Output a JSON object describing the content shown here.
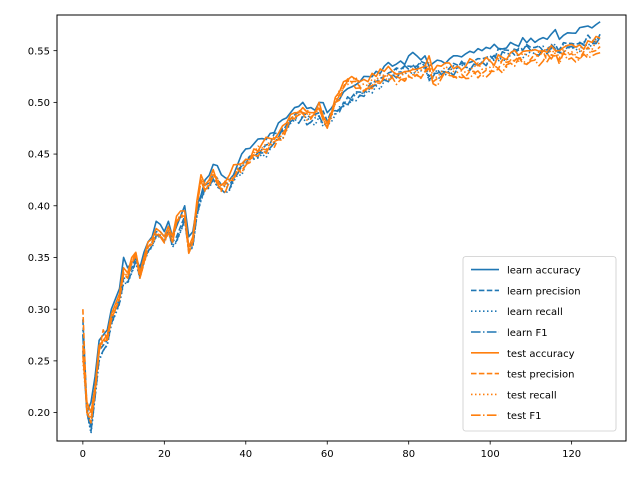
{
  "chart_data": {
    "type": "line",
    "title": "",
    "xlabel": "",
    "ylabel": "",
    "xlim": [
      -6.35,
      133.35
    ],
    "ylim": [
      0.1725,
      0.5845
    ],
    "x_ticks": [
      0,
      20,
      40,
      60,
      80,
      100,
      120
    ],
    "x_tick_labels": [
      "0",
      "20",
      "40",
      "60",
      "80",
      "100",
      "120"
    ],
    "y_ticks": [
      0.2,
      0.25,
      0.3,
      0.35,
      0.4,
      0.45,
      0.5,
      0.55
    ],
    "y_tick_labels": [
      "0.20",
      "0.25",
      "0.30",
      "0.35",
      "0.40",
      "0.45",
      "0.50",
      "0.55"
    ],
    "grid": false,
    "legend_position": "lower right",
    "keypoints": {
      "x": [
        0,
        1,
        2,
        3,
        4,
        5,
        6,
        7,
        8,
        9,
        10,
        11,
        12,
        13,
        14,
        15,
        16,
        17,
        18,
        19,
        20,
        21,
        22,
        23,
        24,
        25,
        26,
        27,
        28,
        29,
        30,
        32,
        34,
        36,
        38,
        40,
        42,
        44,
        46,
        48,
        50,
        52,
        54,
        56,
        58,
        60,
        62,
        64,
        66,
        68,
        70,
        72,
        74,
        76,
        78,
        80,
        82,
        84,
        85,
        86,
        88,
        90,
        92,
        94,
        96,
        98,
        100,
        105,
        110,
        115,
        120,
        125,
        127
      ],
      "learn_accuracy": [
        0.26,
        0.2,
        0.21,
        0.235,
        0.27,
        0.275,
        0.28,
        0.3,
        0.31,
        0.32,
        0.35,
        0.34,
        0.345,
        0.35,
        0.34,
        0.355,
        0.365,
        0.37,
        0.385,
        0.382,
        0.375,
        0.385,
        0.37,
        0.38,
        0.39,
        0.4,
        0.37,
        0.375,
        0.4,
        0.41,
        0.425,
        0.44,
        0.43,
        0.425,
        0.44,
        0.455,
        0.46,
        0.465,
        0.47,
        0.48,
        0.485,
        0.495,
        0.5,
        0.495,
        0.5,
        0.49,
        0.5,
        0.51,
        0.515,
        0.52,
        0.525,
        0.53,
        0.535,
        0.535,
        0.54,
        0.545,
        0.545,
        0.545,
        0.535,
        0.538,
        0.54,
        0.542,
        0.545,
        0.547,
        0.548,
        0.55,
        0.552,
        0.558,
        0.562,
        0.566,
        0.567,
        0.572,
        0.578
      ],
      "learn_precision": [
        0.29,
        0.205,
        0.185,
        0.22,
        0.26,
        0.265,
        0.27,
        0.29,
        0.3,
        0.31,
        0.33,
        0.33,
        0.34,
        0.35,
        0.335,
        0.35,
        0.36,
        0.365,
        0.375,
        0.375,
        0.37,
        0.38,
        0.365,
        0.37,
        0.38,
        0.39,
        0.36,
        0.365,
        0.395,
        0.41,
        0.42,
        0.43,
        0.42,
        0.42,
        0.435,
        0.445,
        0.45,
        0.455,
        0.46,
        0.47,
        0.478,
        0.488,
        0.49,
        0.485,
        0.49,
        0.482,
        0.492,
        0.5,
        0.505,
        0.51,
        0.515,
        0.52,
        0.525,
        0.53,
        0.532,
        0.535,
        0.535,
        0.538,
        0.525,
        0.528,
        0.53,
        0.533,
        0.536,
        0.538,
        0.54,
        0.542,
        0.545,
        0.55,
        0.553,
        0.556,
        0.557,
        0.56,
        0.566
      ],
      "learn_recall": [
        0.28,
        0.2,
        0.18,
        0.215,
        0.25,
        0.26,
        0.265,
        0.285,
        0.295,
        0.305,
        0.325,
        0.325,
        0.335,
        0.345,
        0.33,
        0.345,
        0.355,
        0.36,
        0.37,
        0.37,
        0.365,
        0.375,
        0.36,
        0.365,
        0.375,
        0.385,
        0.355,
        0.36,
        0.39,
        0.405,
        0.415,
        0.425,
        0.415,
        0.415,
        0.43,
        0.44,
        0.445,
        0.45,
        0.455,
        0.465,
        0.473,
        0.483,
        0.485,
        0.48,
        0.486,
        0.478,
        0.488,
        0.496,
        0.501,
        0.506,
        0.511,
        0.516,
        0.521,
        0.526,
        0.528,
        0.531,
        0.531,
        0.534,
        0.521,
        0.524,
        0.526,
        0.529,
        0.532,
        0.534,
        0.536,
        0.538,
        0.541,
        0.546,
        0.549,
        0.552,
        0.553,
        0.556,
        0.562
      ],
      "learn_f1": [
        0.275,
        0.2,
        0.182,
        0.215,
        0.252,
        0.26,
        0.266,
        0.286,
        0.296,
        0.306,
        0.327,
        0.326,
        0.336,
        0.346,
        0.331,
        0.346,
        0.356,
        0.361,
        0.371,
        0.371,
        0.366,
        0.376,
        0.361,
        0.366,
        0.376,
        0.386,
        0.356,
        0.361,
        0.391,
        0.406,
        0.416,
        0.426,
        0.416,
        0.416,
        0.431,
        0.441,
        0.446,
        0.451,
        0.456,
        0.466,
        0.474,
        0.484,
        0.486,
        0.481,
        0.487,
        0.479,
        0.489,
        0.497,
        0.502,
        0.507,
        0.512,
        0.517,
        0.522,
        0.527,
        0.529,
        0.532,
        0.532,
        0.535,
        0.522,
        0.525,
        0.527,
        0.53,
        0.533,
        0.535,
        0.537,
        0.539,
        0.542,
        0.547,
        0.55,
        0.553,
        0.554,
        0.557,
        0.563
      ],
      "test_accuracy": [
        0.255,
        0.21,
        0.2,
        0.225,
        0.265,
        0.27,
        0.275,
        0.295,
        0.305,
        0.315,
        0.34,
        0.335,
        0.35,
        0.355,
        0.335,
        0.35,
        0.365,
        0.368,
        0.378,
        0.375,
        0.37,
        0.38,
        0.37,
        0.39,
        0.395,
        0.395,
        0.36,
        0.37,
        0.405,
        0.43,
        0.42,
        0.435,
        0.42,
        0.43,
        0.44,
        0.445,
        0.455,
        0.46,
        0.465,
        0.47,
        0.48,
        0.49,
        0.495,
        0.49,
        0.5,
        0.48,
        0.505,
        0.52,
        0.525,
        0.52,
        0.52,
        0.525,
        0.53,
        0.53,
        0.528,
        0.53,
        0.532,
        0.535,
        0.545,
        0.53,
        0.535,
        0.538,
        0.535,
        0.535,
        0.54,
        0.538,
        0.54,
        0.548,
        0.55,
        0.555,
        0.556,
        0.558,
        0.562
      ],
      "test_precision": [
        0.3,
        0.2,
        0.19,
        0.22,
        0.26,
        0.28,
        0.27,
        0.29,
        0.3,
        0.31,
        0.335,
        0.33,
        0.345,
        0.355,
        0.33,
        0.345,
        0.36,
        0.365,
        0.372,
        0.372,
        0.365,
        0.375,
        0.365,
        0.385,
        0.39,
        0.39,
        0.355,
        0.365,
        0.4,
        0.425,
        0.415,
        0.43,
        0.415,
        0.425,
        0.435,
        0.44,
        0.45,
        0.455,
        0.46,
        0.465,
        0.475,
        0.485,
        0.49,
        0.485,
        0.495,
        0.476,
        0.5,
        0.515,
        0.52,
        0.515,
        0.515,
        0.52,
        0.525,
        0.525,
        0.523,
        0.525,
        0.527,
        0.53,
        0.535,
        0.52,
        0.525,
        0.528,
        0.525,
        0.525,
        0.53,
        0.528,
        0.53,
        0.54,
        0.542,
        0.546,
        0.547,
        0.549,
        0.554
      ],
      "test_recall": [
        0.25,
        0.205,
        0.195,
        0.222,
        0.262,
        0.268,
        0.272,
        0.292,
        0.302,
        0.312,
        0.336,
        0.332,
        0.346,
        0.352,
        0.332,
        0.346,
        0.361,
        0.364,
        0.374,
        0.371,
        0.366,
        0.376,
        0.366,
        0.386,
        0.391,
        0.391,
        0.356,
        0.366,
        0.401,
        0.426,
        0.416,
        0.431,
        0.416,
        0.426,
        0.436,
        0.441,
        0.451,
        0.456,
        0.461,
        0.466,
        0.476,
        0.486,
        0.491,
        0.486,
        0.496,
        0.477,
        0.501,
        0.516,
        0.521,
        0.516,
        0.516,
        0.521,
        0.526,
        0.526,
        0.524,
        0.526,
        0.528,
        0.531,
        0.539,
        0.524,
        0.529,
        0.532,
        0.529,
        0.529,
        0.534,
        0.532,
        0.534,
        0.541,
        0.544,
        0.548,
        0.549,
        0.551,
        0.556
      ],
      "test_f1": [
        0.265,
        0.2,
        0.192,
        0.22,
        0.26,
        0.27,
        0.27,
        0.29,
        0.3,
        0.31,
        0.334,
        0.33,
        0.344,
        0.352,
        0.33,
        0.344,
        0.359,
        0.363,
        0.372,
        0.37,
        0.364,
        0.374,
        0.364,
        0.384,
        0.389,
        0.389,
        0.354,
        0.364,
        0.399,
        0.424,
        0.414,
        0.429,
        0.414,
        0.424,
        0.434,
        0.439,
        0.449,
        0.454,
        0.459,
        0.464,
        0.474,
        0.484,
        0.489,
        0.484,
        0.494,
        0.475,
        0.499,
        0.514,
        0.519,
        0.514,
        0.514,
        0.519,
        0.524,
        0.524,
        0.522,
        0.524,
        0.526,
        0.529,
        0.533,
        0.518,
        0.523,
        0.526,
        0.523,
        0.523,
        0.528,
        0.526,
        0.528,
        0.538,
        0.54,
        0.542,
        0.543,
        0.545,
        0.548
      ]
    },
    "series": [
      {
        "name": "learn accuracy",
        "key": "learn_accuracy",
        "color": "#1f77b4",
        "dash": "solid"
      },
      {
        "name": "learn precision",
        "key": "learn_precision",
        "color": "#1f77b4",
        "dash": "dashed"
      },
      {
        "name": "learn recall",
        "key": "learn_recall",
        "color": "#1f77b4",
        "dash": "dotted"
      },
      {
        "name": "learn F1",
        "key": "learn_f1",
        "color": "#1f77b4",
        "dash": "dashdot"
      },
      {
        "name": "test accuracy",
        "key": "test_accuracy",
        "color": "#ff7f0e",
        "dash": "solid"
      },
      {
        "name": "test precision",
        "key": "test_precision",
        "color": "#ff7f0e",
        "dash": "dashed"
      },
      {
        "name": "test recall",
        "key": "test_recall",
        "color": "#ff7f0e",
        "dash": "dotted"
      },
      {
        "name": "test F1",
        "key": "test_f1",
        "color": "#ff7f0e",
        "dash": "dashdot"
      }
    ]
  }
}
